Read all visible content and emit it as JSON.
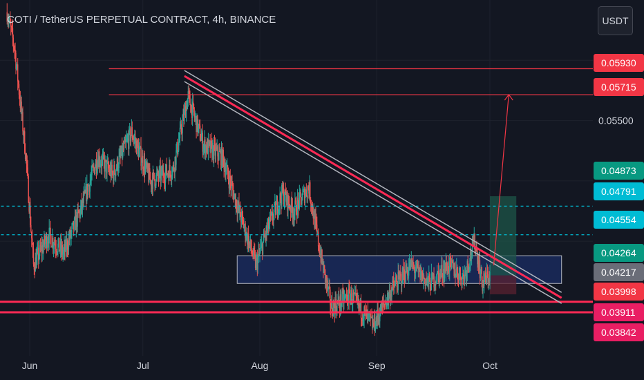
{
  "header": {
    "title": "COTI / TetherUS PERPETUAL CONTRACT, 4h, BINANCE",
    "currency_label": "USDT"
  },
  "colors": {
    "background": "#131722",
    "grid": "#1e222d",
    "up": "#26a69a",
    "down": "#ef5350",
    "line_red": "#f23645",
    "line_pink": "#ff2a55",
    "channel_white": "#b2b5be",
    "dashed_cyan": "#00bcd4",
    "zone_fill": "#1a2a5c",
    "zone_border": "#b2b5be",
    "long_profit": "#1e5548",
    "long_loss": "#5a2230",
    "badge_green": "#089981",
    "badge_cyan": "#00bcd4",
    "badge_gray": "#6a6d78",
    "badge_red": "#f23645",
    "badge_pink": "#e91e63"
  },
  "chart_data": {
    "type": "candlestick",
    "title": "COTI / TetherUS PERPETUAL CONTRACT, 4h, BINANCE",
    "ylim": [
      0.0355,
      0.065
    ],
    "y_axis_ticks": [
      0.055
    ],
    "x_axis_ticks": [
      "Jun",
      "Jul",
      "Aug",
      "Sep",
      "Oct"
    ],
    "x_tick_dates": [
      "2023-06-01",
      "2023-07-01",
      "2023-08-01",
      "2023-09-01",
      "2023-10-01"
    ],
    "price_badges": [
      {
        "value": "0.05930",
        "style": "red"
      },
      {
        "value": "0.05715",
        "style": "red"
      },
      {
        "value": "0.04873",
        "style": "green"
      },
      {
        "value": "0.04791",
        "style": "cyan"
      },
      {
        "value": "0.04554",
        "style": "cyan"
      },
      {
        "value": "0.04264",
        "style": "green"
      },
      {
        "value": "0.04217",
        "style": "gray"
      },
      {
        "value": "0.03998",
        "style": "red"
      },
      {
        "value": "0.03911",
        "style": "pink"
      },
      {
        "value": "0.03842",
        "style": "pink"
      }
    ],
    "price_path": [
      {
        "date": "2023-05-26",
        "price": 0.064
      },
      {
        "date": "2023-05-28",
        "price": 0.061
      },
      {
        "date": "2023-05-31",
        "price": 0.052
      },
      {
        "date": "2023-06-02",
        "price": 0.043
      },
      {
        "date": "2023-06-06",
        "price": 0.0455
      },
      {
        "date": "2023-06-10",
        "price": 0.044
      },
      {
        "date": "2023-06-15",
        "price": 0.048
      },
      {
        "date": "2023-06-19",
        "price": 0.052
      },
      {
        "date": "2023-06-23",
        "price": 0.0505
      },
      {
        "date": "2023-06-28",
        "price": 0.054
      },
      {
        "date": "2023-07-03",
        "price": 0.05
      },
      {
        "date": "2023-07-09",
        "price": 0.051
      },
      {
        "date": "2023-07-13",
        "price": 0.057
      },
      {
        "date": "2023-07-17",
        "price": 0.053
      },
      {
        "date": "2023-07-22",
        "price": 0.052
      },
      {
        "date": "2023-07-26",
        "price": 0.048
      },
      {
        "date": "2023-07-31",
        "price": 0.043
      },
      {
        "date": "2023-08-03",
        "price": 0.046
      },
      {
        "date": "2023-08-07",
        "price": 0.049
      },
      {
        "date": "2023-08-10",
        "price": 0.0475
      },
      {
        "date": "2023-08-14",
        "price": 0.0495
      },
      {
        "date": "2023-08-17",
        "price": 0.044
      },
      {
        "date": "2023-08-20",
        "price": 0.0395
      },
      {
        "date": "2023-08-25",
        "price": 0.0405
      },
      {
        "date": "2023-08-31",
        "price": 0.038
      },
      {
        "date": "2023-09-05",
        "price": 0.041
      },
      {
        "date": "2023-09-10",
        "price": 0.043
      },
      {
        "date": "2023-09-15",
        "price": 0.0415
      },
      {
        "date": "2023-09-20",
        "price": 0.043
      },
      {
        "date": "2023-09-24",
        "price": 0.042
      },
      {
        "date": "2023-09-27",
        "price": 0.045
      },
      {
        "date": "2023-09-29",
        "price": 0.0415
      },
      {
        "date": "2023-10-01",
        "price": 0.0422
      }
    ],
    "horizontal_lines": [
      {
        "value": 0.0593,
        "style": "solid-red",
        "from_date": "2023-06-22"
      },
      {
        "value": 0.05715,
        "style": "solid-red",
        "from_date": "2023-06-22"
      },
      {
        "value": 0.04791,
        "style": "dashed-cyan",
        "from_date": "2023-05-20"
      },
      {
        "value": 0.04554,
        "style": "dashed-cyan",
        "from_date": "2023-05-20"
      },
      {
        "value": 0.03998,
        "style": "thick-pink",
        "from_date": "2023-05-20"
      },
      {
        "value": 0.03911,
        "style": "thick-pink",
        "from_date": "2023-05-20"
      }
    ],
    "trendline_channel": {
      "start": {
        "date": "2023-07-12",
        "price": 0.0587
      },
      "end": {
        "date": "2023-10-20",
        "price": 0.0403
      }
    },
    "support_zone": {
      "from_date": "2023-07-26",
      "to_date": "2023-10-20",
      "low": 0.0415,
      "high": 0.0438
    },
    "long_position": {
      "from_date": "2023-10-01",
      "to_date": "2023-10-08",
      "entry": 0.04217,
      "target": 0.04873,
      "stop": 0.0406
    },
    "projection_arrow": {
      "from": {
        "date": "2023-10-02",
        "price": 0.043
      },
      "to": {
        "date": "2023-10-06",
        "price": 0.05715
      }
    }
  }
}
